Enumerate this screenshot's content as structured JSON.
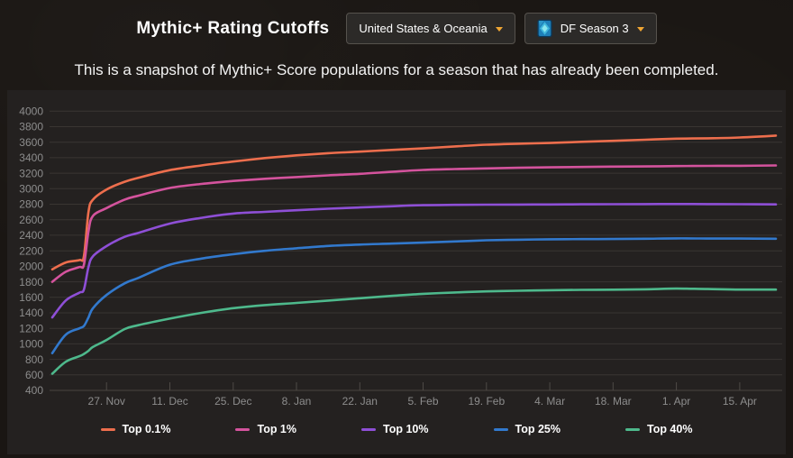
{
  "header": {
    "title": "Mythic+ Rating Cutoffs",
    "region_dropdown": {
      "label": "United States & Oceania",
      "caret_icon": "chevron-down-icon",
      "caret_color": "#f0a633"
    },
    "season_dropdown": {
      "label": "DF Season 3",
      "icon": "gem-icon",
      "caret_icon": "chevron-down-icon",
      "caret_color": "#f0a633"
    }
  },
  "subtitle": "This is a snapshot of Mythic+ Score populations for a season that has already been completed.",
  "chart_data": {
    "type": "line",
    "title": "",
    "xlabel": "",
    "ylabel": "",
    "ylim": [
      400,
      4000
    ],
    "y_tick_step": 200,
    "grid": true,
    "legend_position": "bottom",
    "axis_text_color": "#8d8d8d",
    "gridline_color": "#393532",
    "axisline_color": "#4a4541",
    "tick_color": "#4e4a46",
    "x_range_days": [
      0,
      160
    ],
    "x_ticks": [
      {
        "day": 12,
        "label": "27. Nov"
      },
      {
        "day": 26,
        "label": "11. Dec"
      },
      {
        "day": 40,
        "label": "25. Dec"
      },
      {
        "day": 54,
        "label": "8. Jan"
      },
      {
        "day": 68,
        "label": "22. Jan"
      },
      {
        "day": 82,
        "label": "5. Feb"
      },
      {
        "day": 96,
        "label": "19. Feb"
      },
      {
        "day": 110,
        "label": "4. Mar"
      },
      {
        "day": 124,
        "label": "18. Mar"
      },
      {
        "day": 138,
        "label": "1. Apr"
      },
      {
        "day": 152,
        "label": "15. Apr"
      }
    ],
    "days": [
      0,
      3,
      6,
      7,
      8,
      9,
      12,
      16,
      19,
      26,
      33,
      40,
      47,
      54,
      61,
      68,
      75,
      82,
      89,
      96,
      103,
      110,
      117,
      124,
      131,
      138,
      145,
      152,
      160
    ],
    "series": [
      {
        "name": "Top 0.1%",
        "color": "#ed6e4d",
        "values": [
          1960,
          2050,
          2080,
          2130,
          2700,
          2860,
          2990,
          3090,
          3140,
          3240,
          3300,
          3350,
          3395,
          3430,
          3458,
          3478,
          3500,
          3520,
          3545,
          3568,
          3580,
          3590,
          3605,
          3618,
          3632,
          3645,
          3650,
          3660,
          3685
        ]
      },
      {
        "name": "Top 1%",
        "color": "#d4539d",
        "values": [
          1800,
          1930,
          1990,
          2020,
          2450,
          2650,
          2750,
          2860,
          2910,
          3010,
          3062,
          3100,
          3128,
          3150,
          3172,
          3192,
          3218,
          3242,
          3254,
          3262,
          3270,
          3276,
          3281,
          3285,
          3288,
          3292,
          3294,
          3296,
          3300
        ]
      },
      {
        "name": "Top 10%",
        "color": "#8e4fd6",
        "values": [
          1340,
          1560,
          1660,
          1700,
          1990,
          2130,
          2260,
          2380,
          2430,
          2550,
          2625,
          2680,
          2702,
          2722,
          2742,
          2758,
          2774,
          2788,
          2792,
          2795,
          2796,
          2797,
          2799,
          2800,
          2801,
          2803,
          2801,
          2800,
          2798
        ]
      },
      {
        "name": "Top 25%",
        "color": "#3279cd",
        "values": [
          880,
          1120,
          1200,
          1230,
          1340,
          1460,
          1630,
          1780,
          1850,
          2020,
          2100,
          2155,
          2200,
          2232,
          2262,
          2280,
          2292,
          2305,
          2320,
          2335,
          2342,
          2348,
          2350,
          2352,
          2355,
          2360,
          2358,
          2357,
          2355
        ]
      },
      {
        "name": "Top 40%",
        "color": "#4eb98c",
        "values": [
          615,
          770,
          840,
          870,
          910,
          960,
          1050,
          1190,
          1240,
          1325,
          1400,
          1460,
          1500,
          1527,
          1558,
          1588,
          1618,
          1645,
          1662,
          1676,
          1684,
          1692,
          1696,
          1698,
          1703,
          1712,
          1706,
          1700,
          1700
        ]
      }
    ]
  }
}
